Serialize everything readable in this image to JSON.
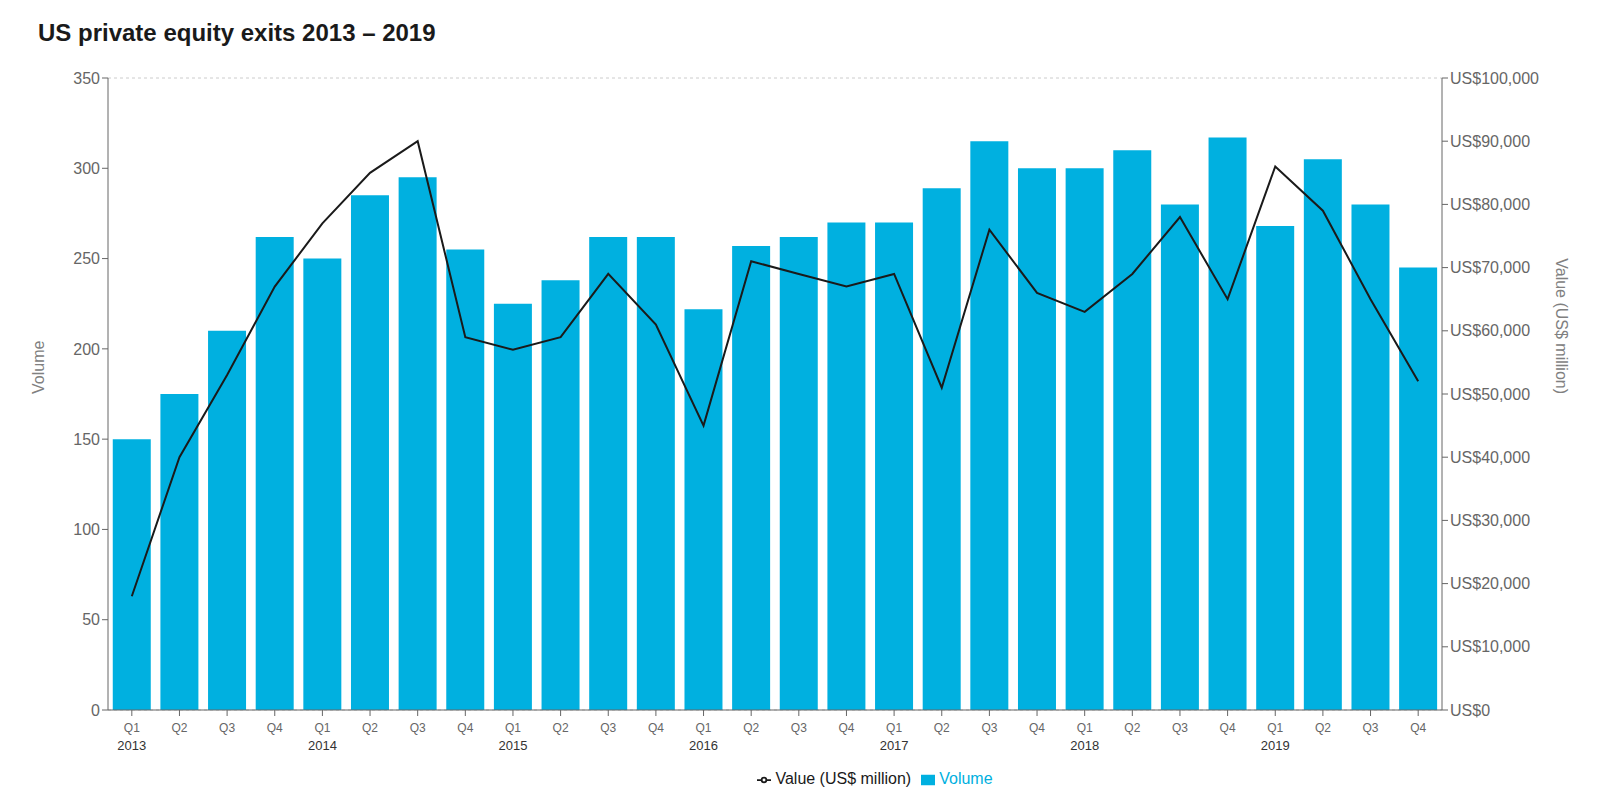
{
  "chart_data": {
    "type": "bar",
    "title": "US private equity exits 2013 – 2019",
    "ylabel": "Volume",
    "y2label": "Value (US$ million)",
    "categories": [
      "Q1",
      "Q2",
      "Q3",
      "Q4",
      "Q1",
      "Q2",
      "Q3",
      "Q4",
      "Q1",
      "Q2",
      "Q3",
      "Q4",
      "Q1",
      "Q2",
      "Q3",
      "Q4",
      "Q1",
      "Q2",
      "Q3",
      "Q4",
      "Q1",
      "Q2",
      "Q3",
      "Q4",
      "Q1",
      "Q2",
      "Q3",
      "Q4"
    ],
    "year_labels": [
      "2013",
      null,
      null,
      null,
      "2014",
      null,
      null,
      null,
      "2015",
      null,
      null,
      null,
      "2016",
      null,
      null,
      null,
      "2017",
      null,
      null,
      null,
      "2018",
      null,
      null,
      null,
      "2019",
      null,
      null,
      null
    ],
    "series": [
      {
        "name": "Volume",
        "type": "bar",
        "color": "#00b0e0",
        "values": [
          150,
          175,
          210,
          262,
          250,
          285,
          295,
          255,
          225,
          238,
          262,
          262,
          222,
          257,
          262,
          270,
          270,
          289,
          315,
          300,
          300,
          310,
          280,
          317,
          268,
          305,
          280,
          245
        ]
      },
      {
        "name": "Value (US$ million)",
        "type": "line",
        "axis": "y2",
        "color": "#1a1a1a",
        "values": [
          18000,
          40000,
          53000,
          67000,
          77000,
          85000,
          90000,
          59000,
          57000,
          59000,
          69000,
          61000,
          45000,
          71000,
          69000,
          67000,
          69000,
          51000,
          76000,
          66000,
          63000,
          69000,
          78000,
          65000,
          86000,
          79000,
          65000,
          52000
        ]
      }
    ],
    "ylim": [
      0,
      350
    ],
    "yticks": [
      0,
      50,
      100,
      150,
      200,
      250,
      300,
      350
    ],
    "y2lim": [
      0,
      100000
    ],
    "y2ticks": [
      {
        "value": 0,
        "label": "US$0"
      },
      {
        "value": 10000,
        "label": "US$10,000"
      },
      {
        "value": 20000,
        "label": "US$20,000"
      },
      {
        "value": 30000,
        "label": "US$30,000"
      },
      {
        "value": 40000,
        "label": "US$40,000"
      },
      {
        "value": 50000,
        "label": "US$50,000"
      },
      {
        "value": 60000,
        "label": "US$60,000"
      },
      {
        "value": 70000,
        "label": "US$70,000"
      },
      {
        "value": 80000,
        "label": "US$80,000"
      },
      {
        "value": 90000,
        "label": "US$90,000"
      },
      {
        "value": 100000,
        "label": "US$100,000"
      }
    ],
    "grid": true,
    "legend": "bottom"
  }
}
